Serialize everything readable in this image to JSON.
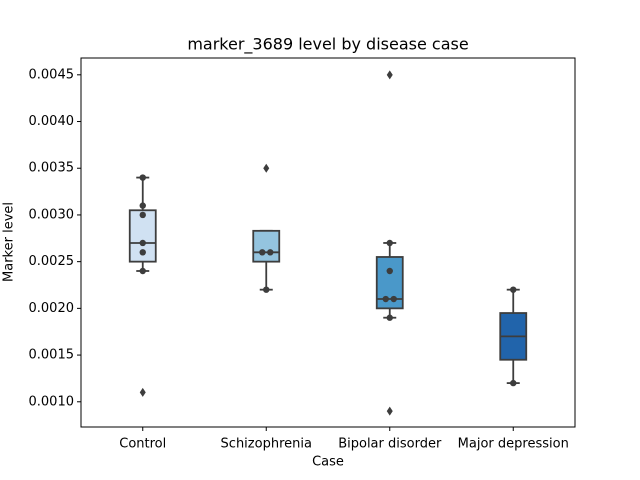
{
  "chart_data": {
    "type": "box",
    "title": "marker_3689 level by disease case",
    "x_label": "Case",
    "y_label": "Marker level",
    "categories": [
      "Control",
      "Schizophrenia",
      "Bipolar disorder",
      "Major depression"
    ],
    "ylim": [
      0.00073,
      0.00468
    ],
    "yticks": [
      {
        "value": 0.001,
        "label": "0.0010"
      },
      {
        "value": 0.0015,
        "label": "0.0015"
      },
      {
        "value": 0.002,
        "label": "0.0020"
      },
      {
        "value": 0.0025,
        "label": "0.0025"
      },
      {
        "value": 0.003,
        "label": "0.0030"
      },
      {
        "value": 0.0035,
        "label": "0.0035"
      },
      {
        "value": 0.004,
        "label": "0.0040"
      },
      {
        "value": 0.0045,
        "label": "0.0045"
      }
    ],
    "boxes": [
      {
        "color": "#d0e1f2",
        "whisker_low": 0.0024,
        "q1": 0.0025,
        "median": 0.0027,
        "q3": 0.00305,
        "whisker_high": 0.0034,
        "points": [
          0.0034,
          0.0031,
          0.003,
          0.0027,
          0.0026,
          0.0024
        ],
        "outliers": [
          0.0011
        ]
      },
      {
        "color": "#94c4df",
        "whisker_low": 0.0022,
        "q1": 0.0025,
        "median": 0.0026,
        "q3": 0.00283,
        "whisker_high": 0.00283,
        "points": [
          0.0026,
          0.0026,
          0.0022
        ],
        "outliers": [
          0.0035
        ]
      },
      {
        "color": "#4a98c9",
        "whisker_low": 0.0019,
        "q1": 0.002,
        "median": 0.0021,
        "q3": 0.00255,
        "whisker_high": 0.0027,
        "points": [
          0.0027,
          0.0024,
          0.0021,
          0.0021,
          0.0019
        ],
        "outliers": [
          0.0045,
          0.0009
        ]
      },
      {
        "color": "#2164ab",
        "whisker_low": 0.0012,
        "q1": 0.00145,
        "median": 0.0017,
        "q3": 0.00195,
        "whisker_high": 0.0022,
        "points": [
          0.0022,
          0.0012
        ],
        "outliers": []
      }
    ]
  }
}
